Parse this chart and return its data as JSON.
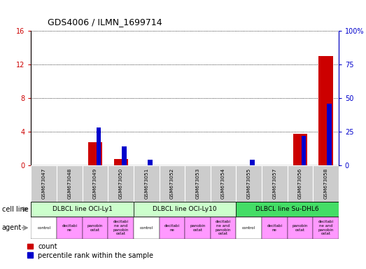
{
  "title": "GDS4006 / ILMN_1699714",
  "samples": [
    "GSM673047",
    "GSM673048",
    "GSM673049",
    "GSM673050",
    "GSM673051",
    "GSM673052",
    "GSM673053",
    "GSM673054",
    "GSM673055",
    "GSM673057",
    "GSM673056",
    "GSM673058"
  ],
  "count_values": [
    0,
    0,
    2.8,
    0.8,
    0,
    0,
    0,
    0,
    0,
    0,
    3.8,
    13.0
  ],
  "percentile_values": [
    0,
    0,
    28,
    14,
    4,
    0,
    0,
    0,
    4,
    0,
    22,
    46
  ],
  "cell_lines": [
    {
      "label": "DLBCL line OCI-Ly1",
      "start": 0,
      "end": 4,
      "color": "#CCFFCC"
    },
    {
      "label": "DLBCL line OCI-Ly10",
      "start": 4,
      "end": 8,
      "color": "#CCFFCC"
    },
    {
      "label": "DLBCL line Su-DHL6",
      "start": 8,
      "end": 12,
      "color": "#44DD66"
    }
  ],
  "agents": [
    "control",
    "decitabi\nne",
    "panobin\nostat",
    "decitabi\nne and\npanobin\nostat",
    "control",
    "decitabi\nne",
    "panobin\nostat",
    "decitabi\nne and\npanobin\nostat",
    "control",
    "decitabi\nne",
    "panobin\nostat",
    "decitabi\nne and\npanobin\nostat"
  ],
  "agent_colors": [
    "#FFFFFF",
    "#FF99FF",
    "#FF99FF",
    "#FF99FF",
    "#FFFFFF",
    "#FF99FF",
    "#FF99FF",
    "#FF99FF",
    "#FFFFFF",
    "#FF99FF",
    "#FF99FF",
    "#FF99FF"
  ],
  "ylim_left": [
    0,
    16
  ],
  "ylim_right": [
    0,
    100
  ],
  "yticks_left": [
    0,
    4,
    8,
    12,
    16
  ],
  "ytick_labels_left": [
    "0",
    "4",
    "8",
    "12",
    "16"
  ],
  "yticks_right": [
    0,
    25,
    50,
    75,
    100
  ],
  "ytick_labels_right": [
    "0",
    "25",
    "50",
    "75",
    "100%"
  ],
  "count_color": "#CC0000",
  "percentile_color": "#0000CC",
  "grid_color": "#000000"
}
